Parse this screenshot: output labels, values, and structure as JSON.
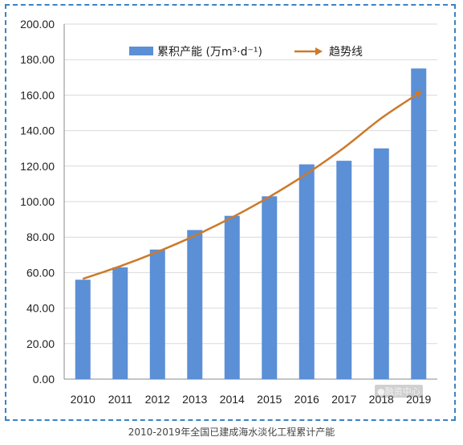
{
  "chart_data": {
    "type": "bar",
    "categories": [
      "2010",
      "2011",
      "2012",
      "2013",
      "2014",
      "2015",
      "2016",
      "2017",
      "2018",
      "2019"
    ],
    "series": [
      {
        "name": "累积产能 (万m³·d⁻¹)",
        "values": [
          56,
          63,
          73,
          84,
          92,
          103,
          121,
          123,
          130,
          175
        ],
        "color": "#5b8fd6"
      }
    ],
    "trendline": {
      "name": "趋势线",
      "color": "#cc7a2b",
      "values": [
        56.5,
        63.6,
        71.7,
        80.8,
        91.1,
        102.7,
        115.7,
        130.4,
        147.0,
        161.0
      ]
    },
    "ylim": [
      0,
      200
    ],
    "yticks": [
      "0.00",
      "20.00",
      "40.00",
      "60.00",
      "80.00",
      "100.00",
      "120.00",
      "140.00",
      "160.00",
      "180.00",
      "200.00"
    ],
    "grid": true,
    "legend_position": "top",
    "caption": "2010-2019年全国已建成海水淡化工程累计产能",
    "watermark": "●融资中心"
  }
}
